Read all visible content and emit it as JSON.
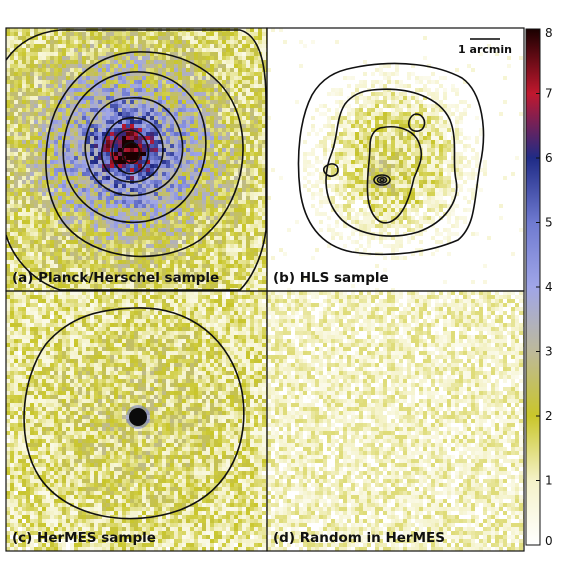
{
  "chart_data": {
    "type": "heatmap",
    "panels": [
      {
        "id": "a",
        "label": "(a) Planck/Herschel sample",
        "peak_value": 8,
        "background_level": 1.4,
        "contour_levels": 7
      },
      {
        "id": "b",
        "label": "(b) HLS sample",
        "peak_value": 3,
        "background_level": 0.4,
        "contour_levels": 5
      },
      {
        "id": "c",
        "label": "(c) HerMES sample",
        "peak_value": 8,
        "background_level": 1.0,
        "contour_levels": 1
      },
      {
        "id": "d",
        "label": "(d) Random in HerMES",
        "peak_value": 1.5,
        "background_level": 0.9,
        "contour_levels": 0
      }
    ],
    "scale_bar": {
      "label": "1 arcmin"
    },
    "colorbar": {
      "min": 0,
      "max": 8,
      "ticks": [
        "0",
        "1",
        "2",
        "3",
        "4",
        "5",
        "6",
        "7",
        "8"
      ],
      "colormap": [
        {
          "value": 0,
          "color": "#ffffff"
        },
        {
          "value": 1,
          "color": "#f4f2c8"
        },
        {
          "value": 2,
          "color": "#c9c62a"
        },
        {
          "value": 3,
          "color": "#bdb99a"
        },
        {
          "value": 4,
          "color": "#a0a6e8"
        },
        {
          "value": 5,
          "color": "#6f7ad0"
        },
        {
          "value": 6,
          "color": "#1f2b86"
        },
        {
          "value": 7,
          "color": "#c0182e"
        },
        {
          "value": 8,
          "color": "#1a0000"
        }
      ]
    }
  }
}
